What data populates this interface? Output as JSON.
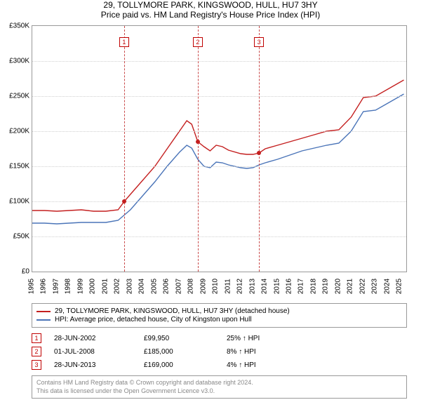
{
  "title_line1": "29, TOLLYMORE PARK, KINGSWOOD, HULL, HU7 3HY",
  "title_line2": "Price paid vs. HM Land Registry's House Price Index (HPI)",
  "chart": {
    "type": "line",
    "background_color": "#ffffff",
    "grid_color": "#d0d0d0",
    "border_color": "#999999",
    "x_range": [
      1995,
      2025.5
    ],
    "y_range": [
      0,
      350000
    ],
    "y_ticks": [
      0,
      50000,
      100000,
      150000,
      200000,
      250000,
      300000,
      350000
    ],
    "y_tick_labels": [
      "£0",
      "£50K",
      "£100K",
      "£150K",
      "£200K",
      "£250K",
      "£300K",
      "£350K"
    ],
    "x_ticks": [
      1995,
      1996,
      1997,
      1998,
      1999,
      2000,
      2001,
      2002,
      2003,
      2004,
      2005,
      2006,
      2007,
      2008,
      2009,
      2010,
      2011,
      2012,
      2013,
      2014,
      2015,
      2016,
      2017,
      2018,
      2019,
      2020,
      2021,
      2022,
      2023,
      2024,
      2025
    ],
    "label_fontsize": 10,
    "title_fontsize": 12,
    "line_width": 1.4,
    "series": [
      {
        "name": "property",
        "label": "29, TOLLYMORE PARK, KINGSWOOD, HULL, HU7 3HY (detached house)",
        "color": "#c41f1f",
        "x": [
          1995,
          1996,
          1997,
          1998,
          1999,
          2000,
          2001,
          2002,
          2002.5,
          2003,
          2004,
          2005,
          2006,
          2007,
          2007.6,
          2008,
          2008.5,
          2009,
          2009.5,
          2010,
          2010.5,
          2011,
          2012,
          2012.5,
          2013,
          2013.5,
          2014,
          2015,
          2016,
          2017,
          2018,
          2019,
          2020,
          2021,
          2022,
          2023,
          2024,
          2025,
          2025.3
        ],
        "y": [
          87000,
          87000,
          86000,
          87000,
          88000,
          86000,
          86000,
          88000,
          99950,
          110000,
          130000,
          150000,
          175000,
          200000,
          215000,
          210000,
          185000,
          178000,
          172000,
          180000,
          178000,
          173000,
          168000,
          167000,
          167000,
          169000,
          175000,
          180000,
          185000,
          190000,
          195000,
          200000,
          202000,
          220000,
          248000,
          250000,
          260000,
          270000,
          273000
        ]
      },
      {
        "name": "hpi",
        "label": "HPI: Average price, detached house, City of Kingston upon Hull",
        "color": "#4a74b8",
        "x": [
          1995,
          1996,
          1997,
          1998,
          1999,
          2000,
          2001,
          2002,
          2003,
          2004,
          2005,
          2006,
          2007,
          2007.6,
          2008,
          2008.5,
          2009,
          2009.5,
          2010,
          2010.5,
          2011,
          2012,
          2012.5,
          2013,
          2013.5,
          2014,
          2015,
          2016,
          2017,
          2018,
          2019,
          2020,
          2021,
          2022,
          2023,
          2024,
          2025,
          2025.3
        ],
        "y": [
          69000,
          69000,
          68000,
          69000,
          70000,
          70000,
          70000,
          73000,
          88000,
          108000,
          128000,
          150000,
          170000,
          180000,
          176000,
          160000,
          150000,
          148000,
          156000,
          155000,
          152000,
          148000,
          147000,
          148000,
          152000,
          155000,
          160000,
          166000,
          172000,
          176000,
          180000,
          183000,
          200000,
          228000,
          230000,
          240000,
          250000,
          253000
        ]
      }
    ],
    "sale_markers": [
      {
        "n": "1",
        "year": 2002.49,
        "price": 99950,
        "date": "28-JUN-2002",
        "pct": "25% ↑ HPI"
      },
      {
        "n": "2",
        "year": 2008.5,
        "price": 185000,
        "date": "01-JUL-2008",
        "pct": "8% ↑ HPI"
      },
      {
        "n": "3",
        "year": 2013.49,
        "price": 169000,
        "date": "28-JUN-2013",
        "pct": "4% ↑ HPI"
      }
    ],
    "marker_line_color": "#c94a4a",
    "marker_box_border": "#c00000",
    "marker_dot_color": "#c41f1f"
  },
  "price_labels": {
    "p1": "£99,950",
    "p2": "£185,000",
    "p3": "£169,000"
  },
  "attribution": {
    "line1": "Contains HM Land Registry data © Crown copyright and database right 2024.",
    "line2": "This data is licensed under the Open Government Licence v3.0."
  }
}
